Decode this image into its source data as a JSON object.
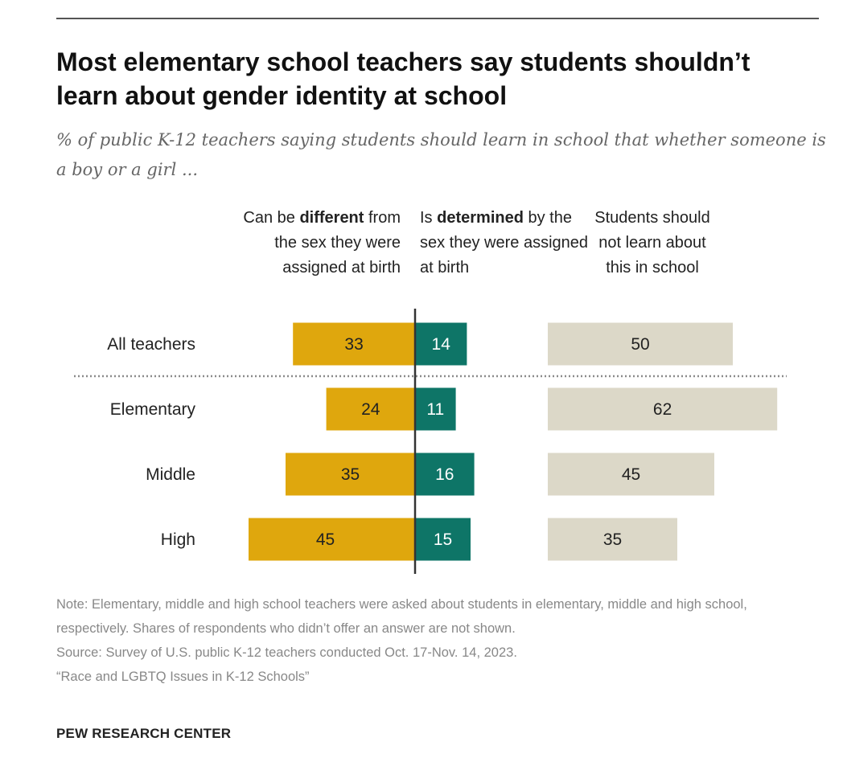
{
  "title": "Most elementary school teachers say students shouldn’t learn about gender identity at school",
  "subtitle": "% of public K-12 teachers saying students should learn in school that whether someone is a boy or a girl ...",
  "columns": {
    "different": {
      "pre": "Can be ",
      "bold": "different",
      "post": " from the sex they were assigned at birth"
    },
    "determined": {
      "pre": "Is ",
      "bold": "determined",
      "post": " by the sex they were assigned at birth"
    },
    "not_learn": {
      "text": "Students should not learn about this in school"
    }
  },
  "note": "Note: Elementary, middle and high school teachers were asked about students in elementary, middle and high school, respectively. Shares of respondents who didn’t offer an answer are not shown.",
  "source": "Source: Survey of U.S. public K-12 teachers conducted Oct. 17-Nov. 14, 2023.",
  "report": "“Race and LGBTQ Issues in K-12 Schools”",
  "brand": "PEW RESEARCH CENTER",
  "chart_data": {
    "type": "bar",
    "title": "Most elementary school teachers say students shouldn’t learn about gender identity at school",
    "categories": [
      "All teachers",
      "Elementary",
      "Middle",
      "High"
    ],
    "series": [
      {
        "name": "Can be different from the sex they were assigned at birth",
        "color": "#dfa70d",
        "values": [
          33,
          24,
          35,
          45
        ]
      },
      {
        "name": "Is determined by the sex they were assigned at birth",
        "color": "#0e7567",
        "values": [
          14,
          11,
          16,
          15
        ]
      },
      {
        "name": "Students should not learn about this in school",
        "color": "#dcd8c8",
        "values": [
          50,
          62,
          45,
          35
        ]
      }
    ],
    "xlim": [
      0,
      100
    ]
  }
}
